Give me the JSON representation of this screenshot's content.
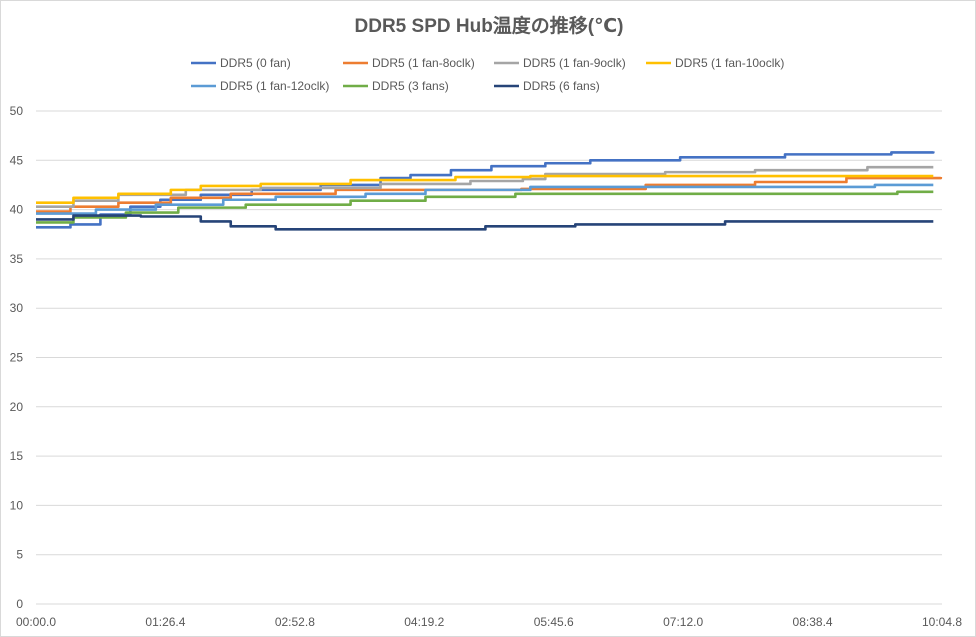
{
  "chart_data": {
    "type": "line",
    "title": "DDR5 SPD Hub温度の推移(℃)",
    "xlabel": "",
    "ylabel": "",
    "ylim": [
      0,
      50
    ],
    "yticks": [
      0,
      5,
      10,
      15,
      20,
      25,
      30,
      35,
      40,
      45,
      50
    ],
    "xlim": [
      0,
      604.8
    ],
    "xticks": [
      0,
      86.4,
      172.8,
      259.2,
      345.6,
      432,
      518.4,
      604.8
    ],
    "xtick_labels": [
      "00:00.0",
      "01:26.4",
      "02:52.8",
      "04:19.2",
      "05:45.6",
      "07:12.0",
      "08:38.4",
      "10:04.8"
    ],
    "grid": true,
    "legend_position": "top",
    "series": [
      {
        "name": "DDR5 (0 fan)",
        "color": "#4472C4",
        "x": [
          0,
          23,
          43,
          63,
          83,
          110,
          144,
          190,
          230,
          250,
          277,
          304,
          340,
          370,
          430,
          500,
          571,
          599
        ],
        "values": [
          38.2,
          38.5,
          39.5,
          40.3,
          41,
          41.5,
          42,
          42.5,
          43.2,
          43.5,
          44,
          44.4,
          44.7,
          45,
          45.3,
          45.6,
          45.8,
          45.9
        ]
      },
      {
        "name": "DDR5 (1 fan-8oclk)",
        "color": "#ED7D31",
        "x": [
          0,
          23,
          55,
          90,
          130,
          200,
          324,
          407,
          480,
          541,
          604
        ],
        "values": [
          39.8,
          40.3,
          40.7,
          41.2,
          41.6,
          42,
          42.1,
          42.5,
          42.8,
          43.2,
          43.3
        ]
      },
      {
        "name": "DDR5 (1 fan-9oclk)",
        "color": "#A5A5A5",
        "x": [
          0,
          25,
          55,
          100,
          150,
          230,
          290,
          325,
          340,
          420,
          480,
          555,
          599
        ],
        "values": [
          40.3,
          40.9,
          41.5,
          42,
          42.2,
          42.6,
          42.9,
          43.1,
          43.6,
          43.8,
          44,
          44.3,
          44.3
        ]
      },
      {
        "name": "DDR5 (1 fan-10oclk)",
        "color": "#FFC000",
        "x": [
          0,
          25,
          55,
          90,
          110,
          150,
          210,
          280,
          330,
          599
        ],
        "values": [
          40.7,
          41.2,
          41.6,
          42,
          42.4,
          42.6,
          43,
          43.3,
          43.4,
          43.4
        ]
      },
      {
        "name": "DDR5 (1 fan-12oclk)",
        "color": "#5B9BD5",
        "x": [
          0,
          40,
          80,
          125,
          160,
          220,
          260,
          330,
          520,
          560,
          599
        ],
        "values": [
          39.6,
          40,
          40.5,
          41,
          41.3,
          41.6,
          42,
          42.3,
          42.3,
          42.5,
          42.5
        ]
      },
      {
        "name": "DDR5 (3 fans)",
        "color": "#70AD47",
        "x": [
          0,
          25,
          60,
          95,
          140,
          210,
          260,
          320,
          560,
          575,
          599
        ],
        "values": [
          38.7,
          39.2,
          39.7,
          40.2,
          40.5,
          40.9,
          41.3,
          41.6,
          41.6,
          41.8,
          41.8
        ]
      },
      {
        "name": "DDR5 (6 fans)",
        "color": "#264478",
        "x": [
          0,
          25,
          70,
          110,
          130,
          160,
          290,
          300,
          360,
          460,
          599
        ],
        "values": [
          39,
          39.4,
          39.3,
          38.8,
          38.3,
          38,
          38,
          38.3,
          38.5,
          38.8,
          38.8
        ]
      }
    ]
  }
}
